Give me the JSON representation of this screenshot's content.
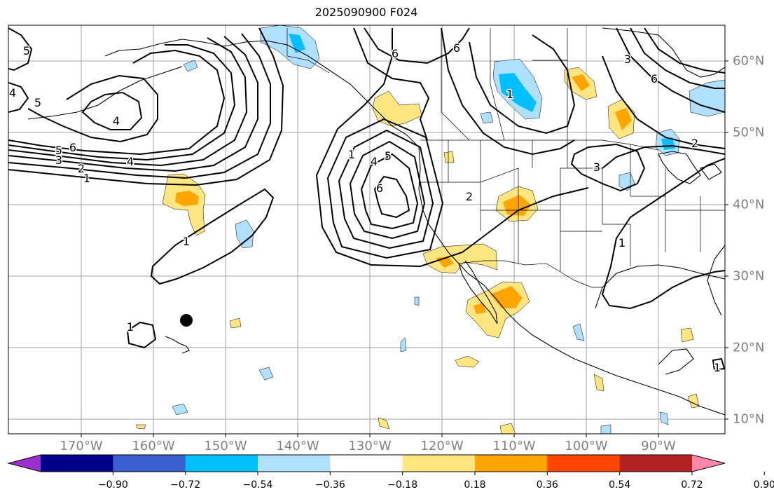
{
  "title": "2025090900 F024",
  "lon_labels": [
    "170°W",
    "160°W",
    "150°W",
    "140°W",
    "130°W",
    "120°W",
    "110°W",
    "100°W",
    "90°W"
  ],
  "lat_labels": [
    "60°N",
    "50°N",
    "40°N",
    "30°N",
    "20°N",
    "10°N"
  ],
  "colorbar": {
    "ticks": [
      "−0.90",
      "−0.72",
      "−0.54",
      "−0.36",
      "−0.18",
      "0.18",
      "0.36",
      "0.54",
      "0.72",
      "0.90"
    ],
    "colors": [
      "#9b30d0",
      "#00008b",
      "#3a5fcd",
      "#00bfff",
      "#b0e0ff",
      "#ffffff",
      "#ffe680",
      "#ffa500",
      "#ff4500",
      "#b22222",
      "#ff88aa"
    ]
  },
  "contour_labels": [
    "5",
    "4",
    "5",
    "4",
    "6",
    "5",
    "3",
    "2",
    "1",
    "4",
    "1",
    "1",
    "1",
    "4",
    "5",
    "6",
    "2",
    "6",
    "6",
    "3",
    "6",
    "1",
    "3",
    "2",
    "1",
    "1"
  ],
  "map_features": {
    "contour_color": "#000000",
    "grid_color": "#a0a0a0",
    "marker": "black-dot"
  }
}
